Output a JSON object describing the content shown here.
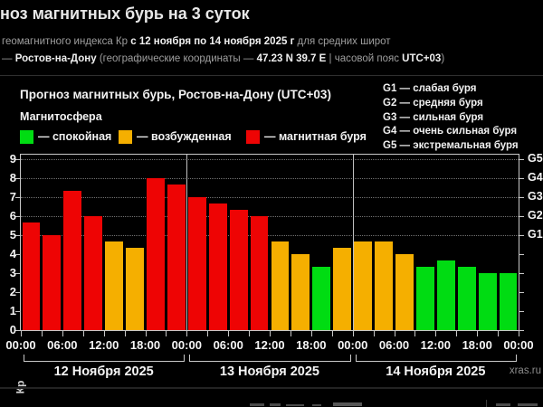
{
  "header": {
    "title": "ноз магнитных бурь на 3 суток",
    "line2": {
      "pre": "геомагнитного индекса Кр ",
      "bold": "с 12 ноября по 14 ноября 2025 г",
      "post": " для средних широт"
    },
    "line3": {
      "dash": "— ",
      "city": "Ростов-на-Дону",
      "mid": " (географические координаты — ",
      "coords": "47.23 N 39.7 E",
      "mid2": " | часовой пояс ",
      "tz": "UTC+03",
      "close": ")"
    }
  },
  "panel": {
    "title": "Прогноз магнитных бурь, Ростов-на-Дону (UTC+03)",
    "subtitle": "Магнитосфера",
    "colors": {
      "quiet": "#00DC12",
      "active": "#F5AF00",
      "storm": "#EE0404"
    },
    "legend": [
      {
        "key": "quiet",
        "label": "— спокойная"
      },
      {
        "key": "active",
        "label": "— возбужденная"
      },
      {
        "key": "storm",
        "label": "— магнитная буря"
      }
    ],
    "g_legend": [
      "G1 — слабая буря",
      "G2 — средняя буря",
      "G3 — сильная буря",
      "G4 — очень сильная буря",
      "G5 — экстремальная буря"
    ]
  },
  "chart_data": {
    "type": "bar",
    "title": "Прогноз магнитных бурь, Ростов-на-Дону (UTC+03)",
    "ylabel": "Кр",
    "ylim": [
      0,
      9
    ],
    "yticks": [
      0,
      1,
      2,
      3,
      4,
      5,
      6,
      7,
      8,
      9
    ],
    "gridlines_at": [
      5,
      6,
      7,
      8,
      9
    ],
    "right_axis_labels": [
      {
        "value": 5,
        "label": "G1"
      },
      {
        "value": 6,
        "label": "G2"
      },
      {
        "value": 7,
        "label": "G3"
      },
      {
        "value": 8,
        "label": "G4"
      },
      {
        "value": 9,
        "label": "G5"
      }
    ],
    "bar_interval_hours": 3,
    "x_tick_labels": [
      "00:00",
      "06:00",
      "12:00",
      "18:00",
      "00:00",
      "06:00",
      "12:00",
      "18:00",
      "00:00",
      "06:00",
      "12:00",
      "18:00",
      "00:00"
    ],
    "days": [
      "12 Ноября 2025",
      "13 Ноября 2025",
      "14 Ноября 2025"
    ],
    "values": [
      5.67,
      5,
      7.33,
      6,
      4.67,
      4.33,
      8,
      7.67,
      7,
      6.67,
      6.33,
      6,
      4.67,
      4,
      3.33,
      4.33,
      4.67,
      4.67,
      4,
      3.33,
      3.67,
      3.33,
      3,
      3
    ],
    "color_rule": {
      "green_below": 4,
      "orange_below": 5,
      "red_from": 5
    }
  },
  "watermark": "xras.ru"
}
